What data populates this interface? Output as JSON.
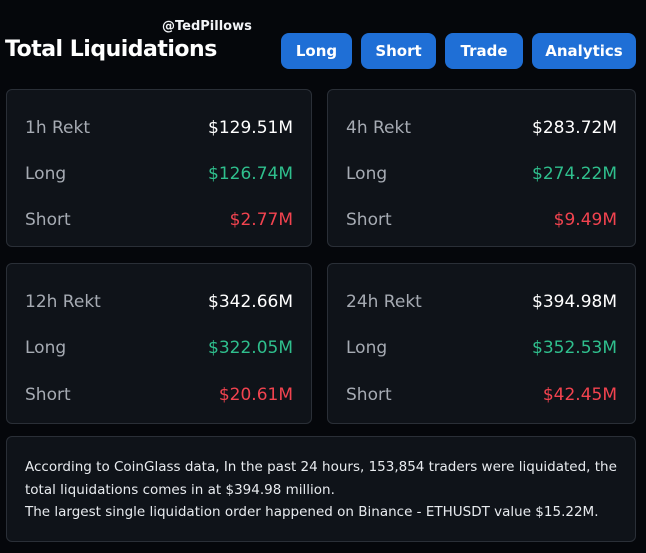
{
  "watermark": "@TedPillows",
  "title": "Total Liquidations",
  "buttons": {
    "long": "Long",
    "short": "Short",
    "trade": "Trade",
    "analytics": "Analytics"
  },
  "colors": {
    "accent": "#1f6fd6",
    "long": "#2fbf8d",
    "short": "#f2434f"
  },
  "cards": [
    {
      "label": "1h Rekt",
      "total": "$129.51M",
      "long_label": "Long",
      "long": "$126.74M",
      "short_label": "Short",
      "short": "$2.77M"
    },
    {
      "label": "4h Rekt",
      "total": "$283.72M",
      "long_label": "Long",
      "long": "$274.22M",
      "short_label": "Short",
      "short": "$9.49M"
    },
    {
      "label": "12h Rekt",
      "total": "$342.66M",
      "long_label": "Long",
      "long": "$322.05M",
      "short_label": "Short",
      "short": "$20.61M"
    },
    {
      "label": "24h Rekt",
      "total": "$394.98M",
      "long_label": "Long",
      "long": "$352.53M",
      "short_label": "Short",
      "short": "$42.45M"
    }
  ],
  "summary": {
    "line1": "According to CoinGlass data, In the past 24 hours, 153,854 traders were liquidated, the total liquidations comes in at $394.98 million.",
    "line2": "The largest single liquidation order happened on Binance - ETHUSDT value $15.22M."
  }
}
